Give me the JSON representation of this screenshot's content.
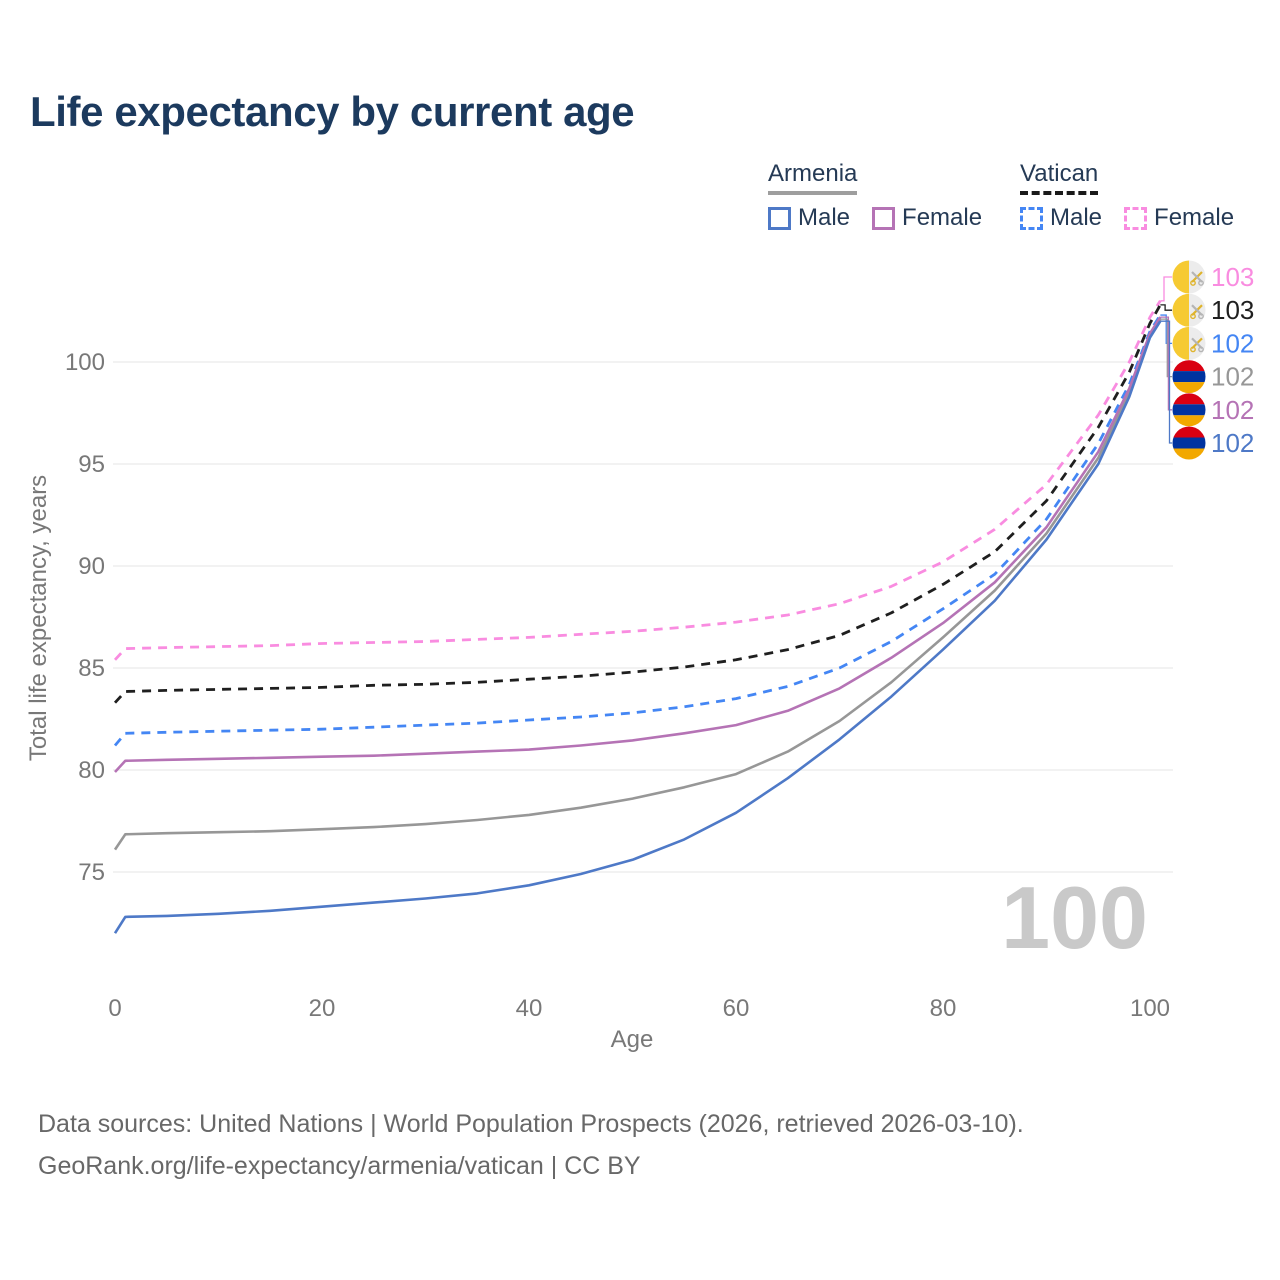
{
  "legend": {
    "groups": [
      {
        "name": "Armenia",
        "line_style": "solid",
        "underline_color": "#9e9e9e",
        "items": [
          {
            "label": "Male",
            "color": "#4e79c7",
            "dashed": false
          },
          {
            "label": "Female",
            "color": "#b573b5",
            "dashed": false
          }
        ]
      },
      {
        "name": "Vatican",
        "line_style": "dashed",
        "underline_color": "#1a1a1a",
        "items": [
          {
            "label": "Male",
            "color": "#4486f4",
            "dashed": true
          },
          {
            "label": "Female",
            "color": "#f98ce0",
            "dashed": true
          }
        ]
      }
    ]
  },
  "chart_data": {
    "type": "line",
    "title": "Life expectancy by current age",
    "xlabel": "Age",
    "ylabel": "Total life expectancy, years",
    "x_ticks": [
      0,
      20,
      40,
      60,
      80,
      100
    ],
    "y_ticks": [
      75,
      80,
      85,
      90,
      95,
      100
    ],
    "xlim": [
      0,
      101
    ],
    "ylim": [
      71.5,
      104.5
    ],
    "grid": "horizontal",
    "legend_position": "top-right",
    "age_counter_watermark": "100",
    "series": [
      {
        "name": "Vatican Female",
        "country": "vatican",
        "sex": "female",
        "color": "#f98ce0",
        "dashed": true,
        "end_label": "103",
        "flag": "vatican",
        "ages": [
          0,
          1,
          5,
          10,
          15,
          20,
          25,
          30,
          35,
          40,
          45,
          50,
          55,
          60,
          65,
          70,
          75,
          80,
          85,
          90,
          95,
          98,
          100,
          101
        ],
        "values": [
          85.4,
          85.95,
          86.0,
          86.05,
          86.1,
          86.2,
          86.25,
          86.3,
          86.4,
          86.5,
          86.65,
          86.8,
          87.0,
          87.25,
          87.6,
          88.15,
          89.0,
          90.2,
          91.8,
          94.0,
          97.4,
          100.0,
          102.2,
          103.0
        ]
      },
      {
        "name": "Vatican Both sexes",
        "country": "vatican",
        "sex": "all",
        "color": "#1f1f1f",
        "dashed": true,
        "end_label": "103",
        "flag": "vatican",
        "ages": [
          0,
          1,
          5,
          10,
          15,
          20,
          25,
          30,
          35,
          40,
          45,
          50,
          55,
          60,
          65,
          70,
          75,
          80,
          85,
          90,
          95,
          98,
          100,
          101
        ],
        "values": [
          83.3,
          83.85,
          83.9,
          83.95,
          84.0,
          84.05,
          84.15,
          84.2,
          84.3,
          84.45,
          84.6,
          84.8,
          85.05,
          85.4,
          85.9,
          86.6,
          87.7,
          89.1,
          90.7,
          93.2,
          96.8,
          99.5,
          101.9,
          102.8
        ]
      },
      {
        "name": "Vatican Male",
        "country": "vatican",
        "sex": "male",
        "color": "#4486f4",
        "dashed": true,
        "end_label": "102",
        "flag": "vatican",
        "ages": [
          0,
          1,
          5,
          10,
          15,
          20,
          25,
          30,
          35,
          40,
          45,
          50,
          55,
          60,
          65,
          70,
          75,
          80,
          85,
          90,
          95,
          98,
          100,
          101
        ],
        "values": [
          81.2,
          81.8,
          81.85,
          81.9,
          81.95,
          82.0,
          82.1,
          82.2,
          82.3,
          82.45,
          82.6,
          82.8,
          83.1,
          83.5,
          84.1,
          85.0,
          86.3,
          87.9,
          89.6,
          92.3,
          96.0,
          98.9,
          101.5,
          102.3
        ]
      },
      {
        "name": "Armenia Both sexes",
        "country": "armenia",
        "sex": "all",
        "color": "#979797",
        "dashed": false,
        "end_label": "102",
        "flag": "armenia",
        "ages": [
          0,
          1,
          5,
          10,
          15,
          20,
          25,
          30,
          35,
          40,
          45,
          50,
          55,
          60,
          65,
          70,
          75,
          80,
          85,
          90,
          95,
          98,
          100,
          101
        ],
        "values": [
          76.1,
          76.85,
          76.9,
          76.95,
          77.0,
          77.1,
          77.2,
          77.35,
          77.55,
          77.8,
          78.15,
          78.6,
          79.15,
          79.8,
          80.9,
          82.4,
          84.3,
          86.5,
          88.8,
          91.6,
          95.3,
          98.5,
          101.3,
          102.1
        ]
      },
      {
        "name": "Armenia Female",
        "country": "armenia",
        "sex": "female",
        "color": "#b573b5",
        "dashed": false,
        "end_label": "102",
        "flag": "armenia",
        "ages": [
          0,
          1,
          5,
          10,
          15,
          20,
          25,
          30,
          35,
          40,
          45,
          50,
          55,
          60,
          65,
          70,
          75,
          80,
          85,
          90,
          95,
          98,
          100,
          101
        ],
        "values": [
          79.9,
          80.45,
          80.5,
          80.55,
          80.6,
          80.65,
          80.7,
          80.8,
          80.9,
          81.0,
          81.2,
          81.45,
          81.8,
          82.2,
          82.9,
          84.0,
          85.5,
          87.2,
          89.2,
          91.9,
          95.6,
          98.7,
          101.4,
          102.2
        ]
      },
      {
        "name": "Armenia Male",
        "country": "armenia",
        "sex": "male",
        "color": "#4e79c7",
        "dashed": false,
        "end_label": "102",
        "flag": "armenia",
        "ages": [
          0,
          1,
          5,
          10,
          15,
          20,
          25,
          30,
          35,
          40,
          45,
          50,
          55,
          60,
          65,
          70,
          75,
          80,
          85,
          90,
          95,
          98,
          100,
          101
        ],
        "values": [
          72.0,
          72.8,
          72.85,
          72.95,
          73.1,
          73.3,
          73.5,
          73.7,
          73.95,
          74.35,
          74.9,
          75.6,
          76.6,
          77.9,
          79.6,
          81.5,
          83.6,
          85.9,
          88.3,
          91.3,
          95.0,
          98.3,
          101.2,
          102.0
        ]
      }
    ],
    "flag_colors": {
      "armenia": {
        "top": "#d90012",
        "middle": "#0033a0",
        "bottom": "#f2a800"
      },
      "vatican": {
        "left": "#f6ca32",
        "right": "#ececec",
        "key_gold": "#dfb42c",
        "key_silver": "#b5b5b5"
      }
    }
  },
  "footer": {
    "line1": "Data sources: United Nations | World Population Prospects (2026, retrieved 2026-03-10).",
    "line2": "GeoRank.org/life-expectancy/armenia/vatican | CC BY"
  }
}
